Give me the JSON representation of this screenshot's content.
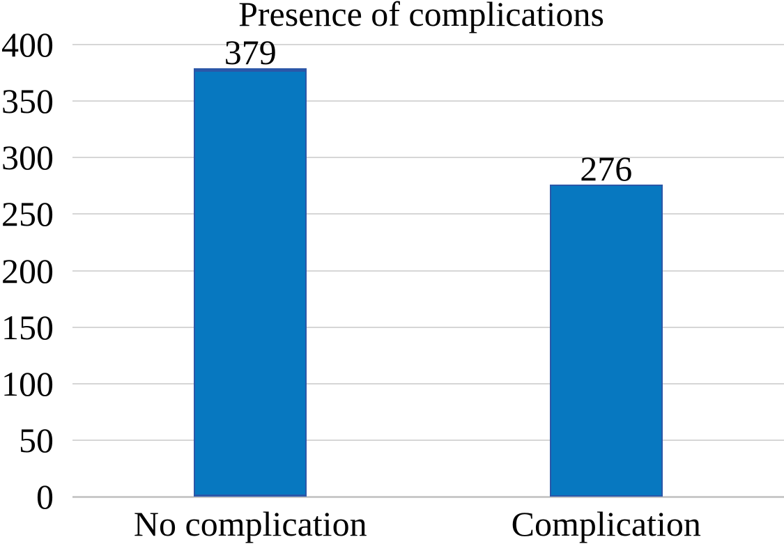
{
  "chart_data": {
    "type": "bar",
    "title": "Presence of complications",
    "categories": [
      "No complication",
      "Complication"
    ],
    "values": [
      379,
      276
    ],
    "data_labels": [
      "379",
      "276"
    ],
    "ylim": [
      0,
      400
    ],
    "ytick_step": 50,
    "yticks": [
      "0",
      "50",
      "100",
      "150",
      "200",
      "250",
      "300",
      "350",
      "400"
    ],
    "xlabel": "",
    "ylabel": "",
    "grid": "horizontal",
    "legend": "none",
    "outlined_bar_index": 0,
    "colors": {
      "bar_fill": "#0778c0",
      "bar_outline": "#2b57a8",
      "gridline": "#d6d6d6",
      "axis_line": "#c9c9c9",
      "text": "#000000",
      "background": "#ffffff"
    }
  }
}
